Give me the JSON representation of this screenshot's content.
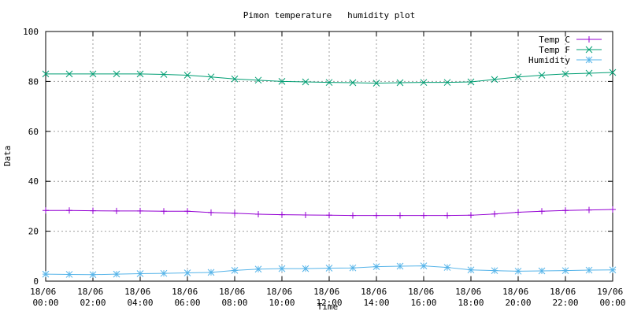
{
  "chart_data": {
    "type": "line",
    "title": "Pimon temperature   humidity plot",
    "x_label": "Time",
    "y_label": "Data",
    "x": [
      "18/06 00:00",
      "18/06 01:00",
      "18/06 02:00",
      "18/06 03:00",
      "18/06 04:00",
      "18/06 05:00",
      "18/06 06:00",
      "18/06 07:00",
      "18/06 08:00",
      "18/06 09:00",
      "18/06 10:00",
      "18/06 11:00",
      "18/06 12:00",
      "18/06 13:00",
      "18/06 14:00",
      "18/06 15:00",
      "18/06 16:00",
      "18/06 17:00",
      "18/06 18:00",
      "18/06 19:00",
      "18/06 20:00",
      "18/06 21:00",
      "18/06 22:00",
      "18/06 23:00",
      "19/06 00:00"
    ],
    "series": [
      {
        "name": "Temp C",
        "color": "#9400d3",
        "marker": "+",
        "values": [
          28.3,
          28.3,
          28.2,
          28.1,
          28.1,
          28.0,
          28.0,
          27.5,
          27.2,
          26.8,
          26.6,
          26.5,
          26.4,
          26.3,
          26.3,
          26.3,
          26.3,
          26.3,
          26.4,
          26.9,
          27.6,
          28.0,
          28.3,
          28.5,
          28.7
        ]
      },
      {
        "name": "Temp F",
        "color": "#009e73",
        "marker": "x",
        "values": [
          83,
          83,
          83,
          83,
          83,
          82.8,
          82.5,
          81.8,
          81,
          80.5,
          80,
          79.8,
          79.6,
          79.5,
          79.3,
          79.5,
          79.6,
          79.6,
          79.8,
          80.8,
          81.8,
          82.5,
          83,
          83.3,
          83.6
        ]
      },
      {
        "name": "Humidity",
        "color": "#56b4e9",
        "marker": "*",
        "values": [
          2.8,
          2.7,
          2.6,
          2.8,
          3,
          3.1,
          3.3,
          3.5,
          4.3,
          4.8,
          5,
          5,
          5.2,
          5.3,
          5.8,
          6,
          6.1,
          5.5,
          4.5,
          4.2,
          4,
          4.1,
          4.2,
          4.4,
          4.5
        ]
      }
    ],
    "xlim": [
      "18/06 00:00",
      "19/06 00:00"
    ],
    "xticks": [
      "18/06 00:00",
      "18/06 02:00",
      "18/06 04:00",
      "18/06 06:00",
      "18/06 08:00",
      "18/06 10:00",
      "18/06 12:00",
      "18/06 14:00",
      "18/06 16:00",
      "18/06 18:00",
      "18/06 20:00",
      "18/06 22:00",
      "19/06 00:00"
    ],
    "ylim": [
      0,
      100
    ],
    "yticks": [
      0,
      20,
      40,
      60,
      80,
      100
    ],
    "grid": true,
    "legend": "upper right"
  }
}
